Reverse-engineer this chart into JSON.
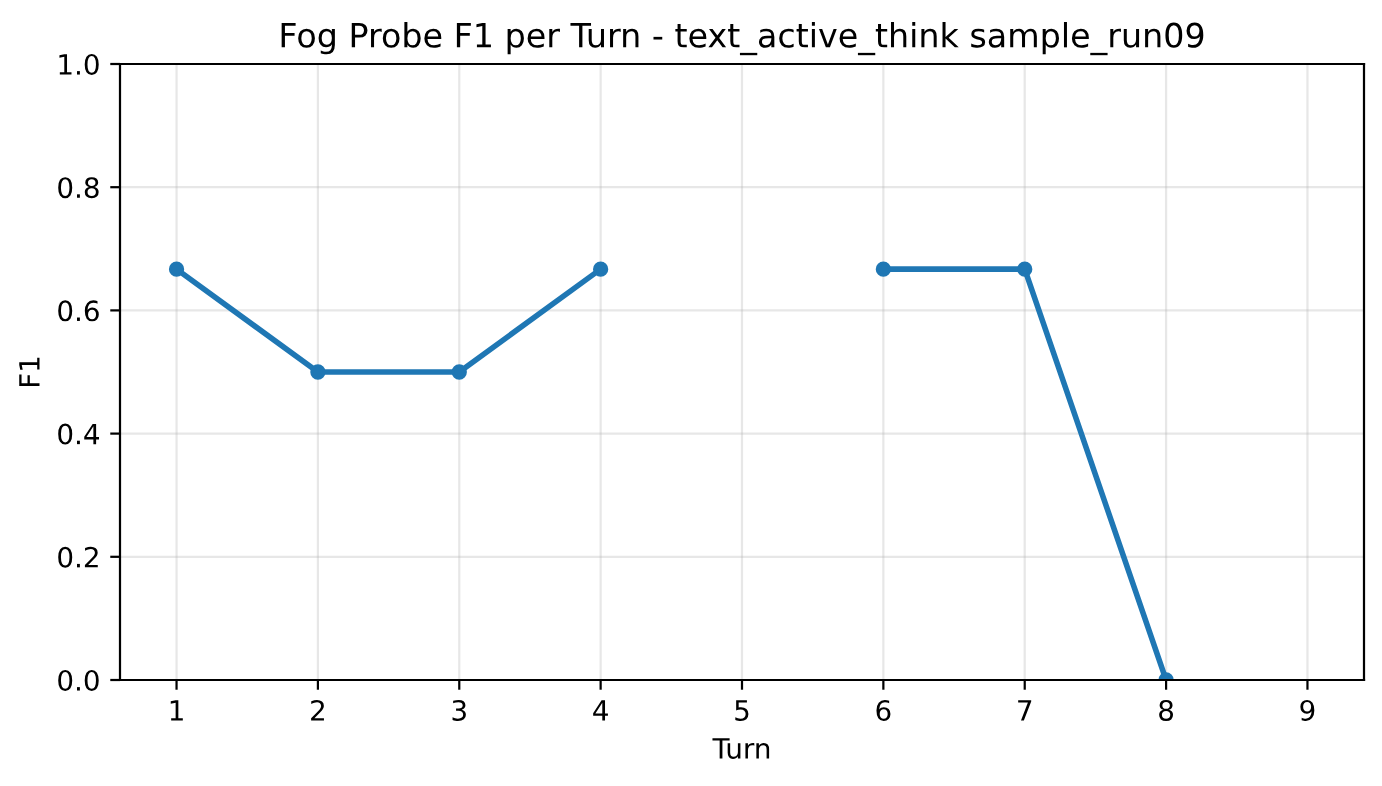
{
  "chart_data": {
    "type": "line",
    "title": "Fog Probe F1 per Turn - text_active_think sample_run09",
    "xlabel": "Turn",
    "ylabel": "F1",
    "x": [
      1,
      2,
      3,
      4,
      5,
      6,
      7,
      8
    ],
    "series": [
      {
        "color": "#1f77b4",
        "values": [
          0.667,
          0.5,
          0.5,
          0.667,
          null,
          0.667,
          0.667,
          0
        ]
      }
    ],
    "xlim": [
      0.6,
      9.4
    ],
    "xticks": [
      1,
      2,
      3,
      4,
      5,
      6,
      7,
      8,
      9
    ],
    "ylim": [
      0,
      1
    ],
    "yticks": [
      {
        "value": 0,
        "label": "0.0"
      },
      {
        "value": 0.2,
        "label": "0.2"
      },
      {
        "value": 0.4,
        "label": "0.4"
      },
      {
        "value": 0.6,
        "label": "0.6"
      },
      {
        "value": 0.8,
        "label": "0.8"
      },
      {
        "value": 1,
        "label": "1.0"
      }
    ],
    "grid": true,
    "marker": "circle",
    "line_style": "solid"
  }
}
